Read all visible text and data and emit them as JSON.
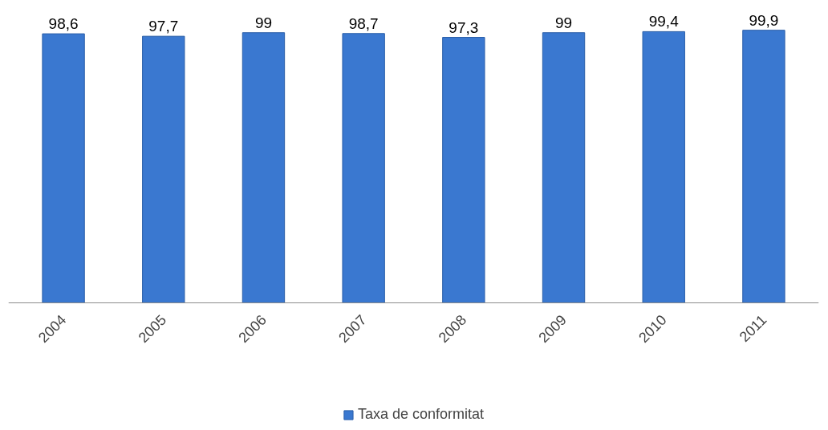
{
  "chart_data": {
    "type": "bar",
    "categories": [
      "2004",
      "2005",
      "2006",
      "2007",
      "2008",
      "2009",
      "2010",
      "2011"
    ],
    "series": [
      {
        "name": "Taxa de conformitat",
        "color": "#3a78d0",
        "values": [
          98.6,
          97.7,
          99,
          98.7,
          97.3,
          99,
          99.4,
          99.9
        ],
        "value_labels": [
          "98,6",
          "97,7",
          "99",
          "98,7",
          "97,3",
          "99",
          "99,4",
          "99,9"
        ]
      }
    ],
    "tick_labels": "x",
    "legend": "bottom"
  }
}
